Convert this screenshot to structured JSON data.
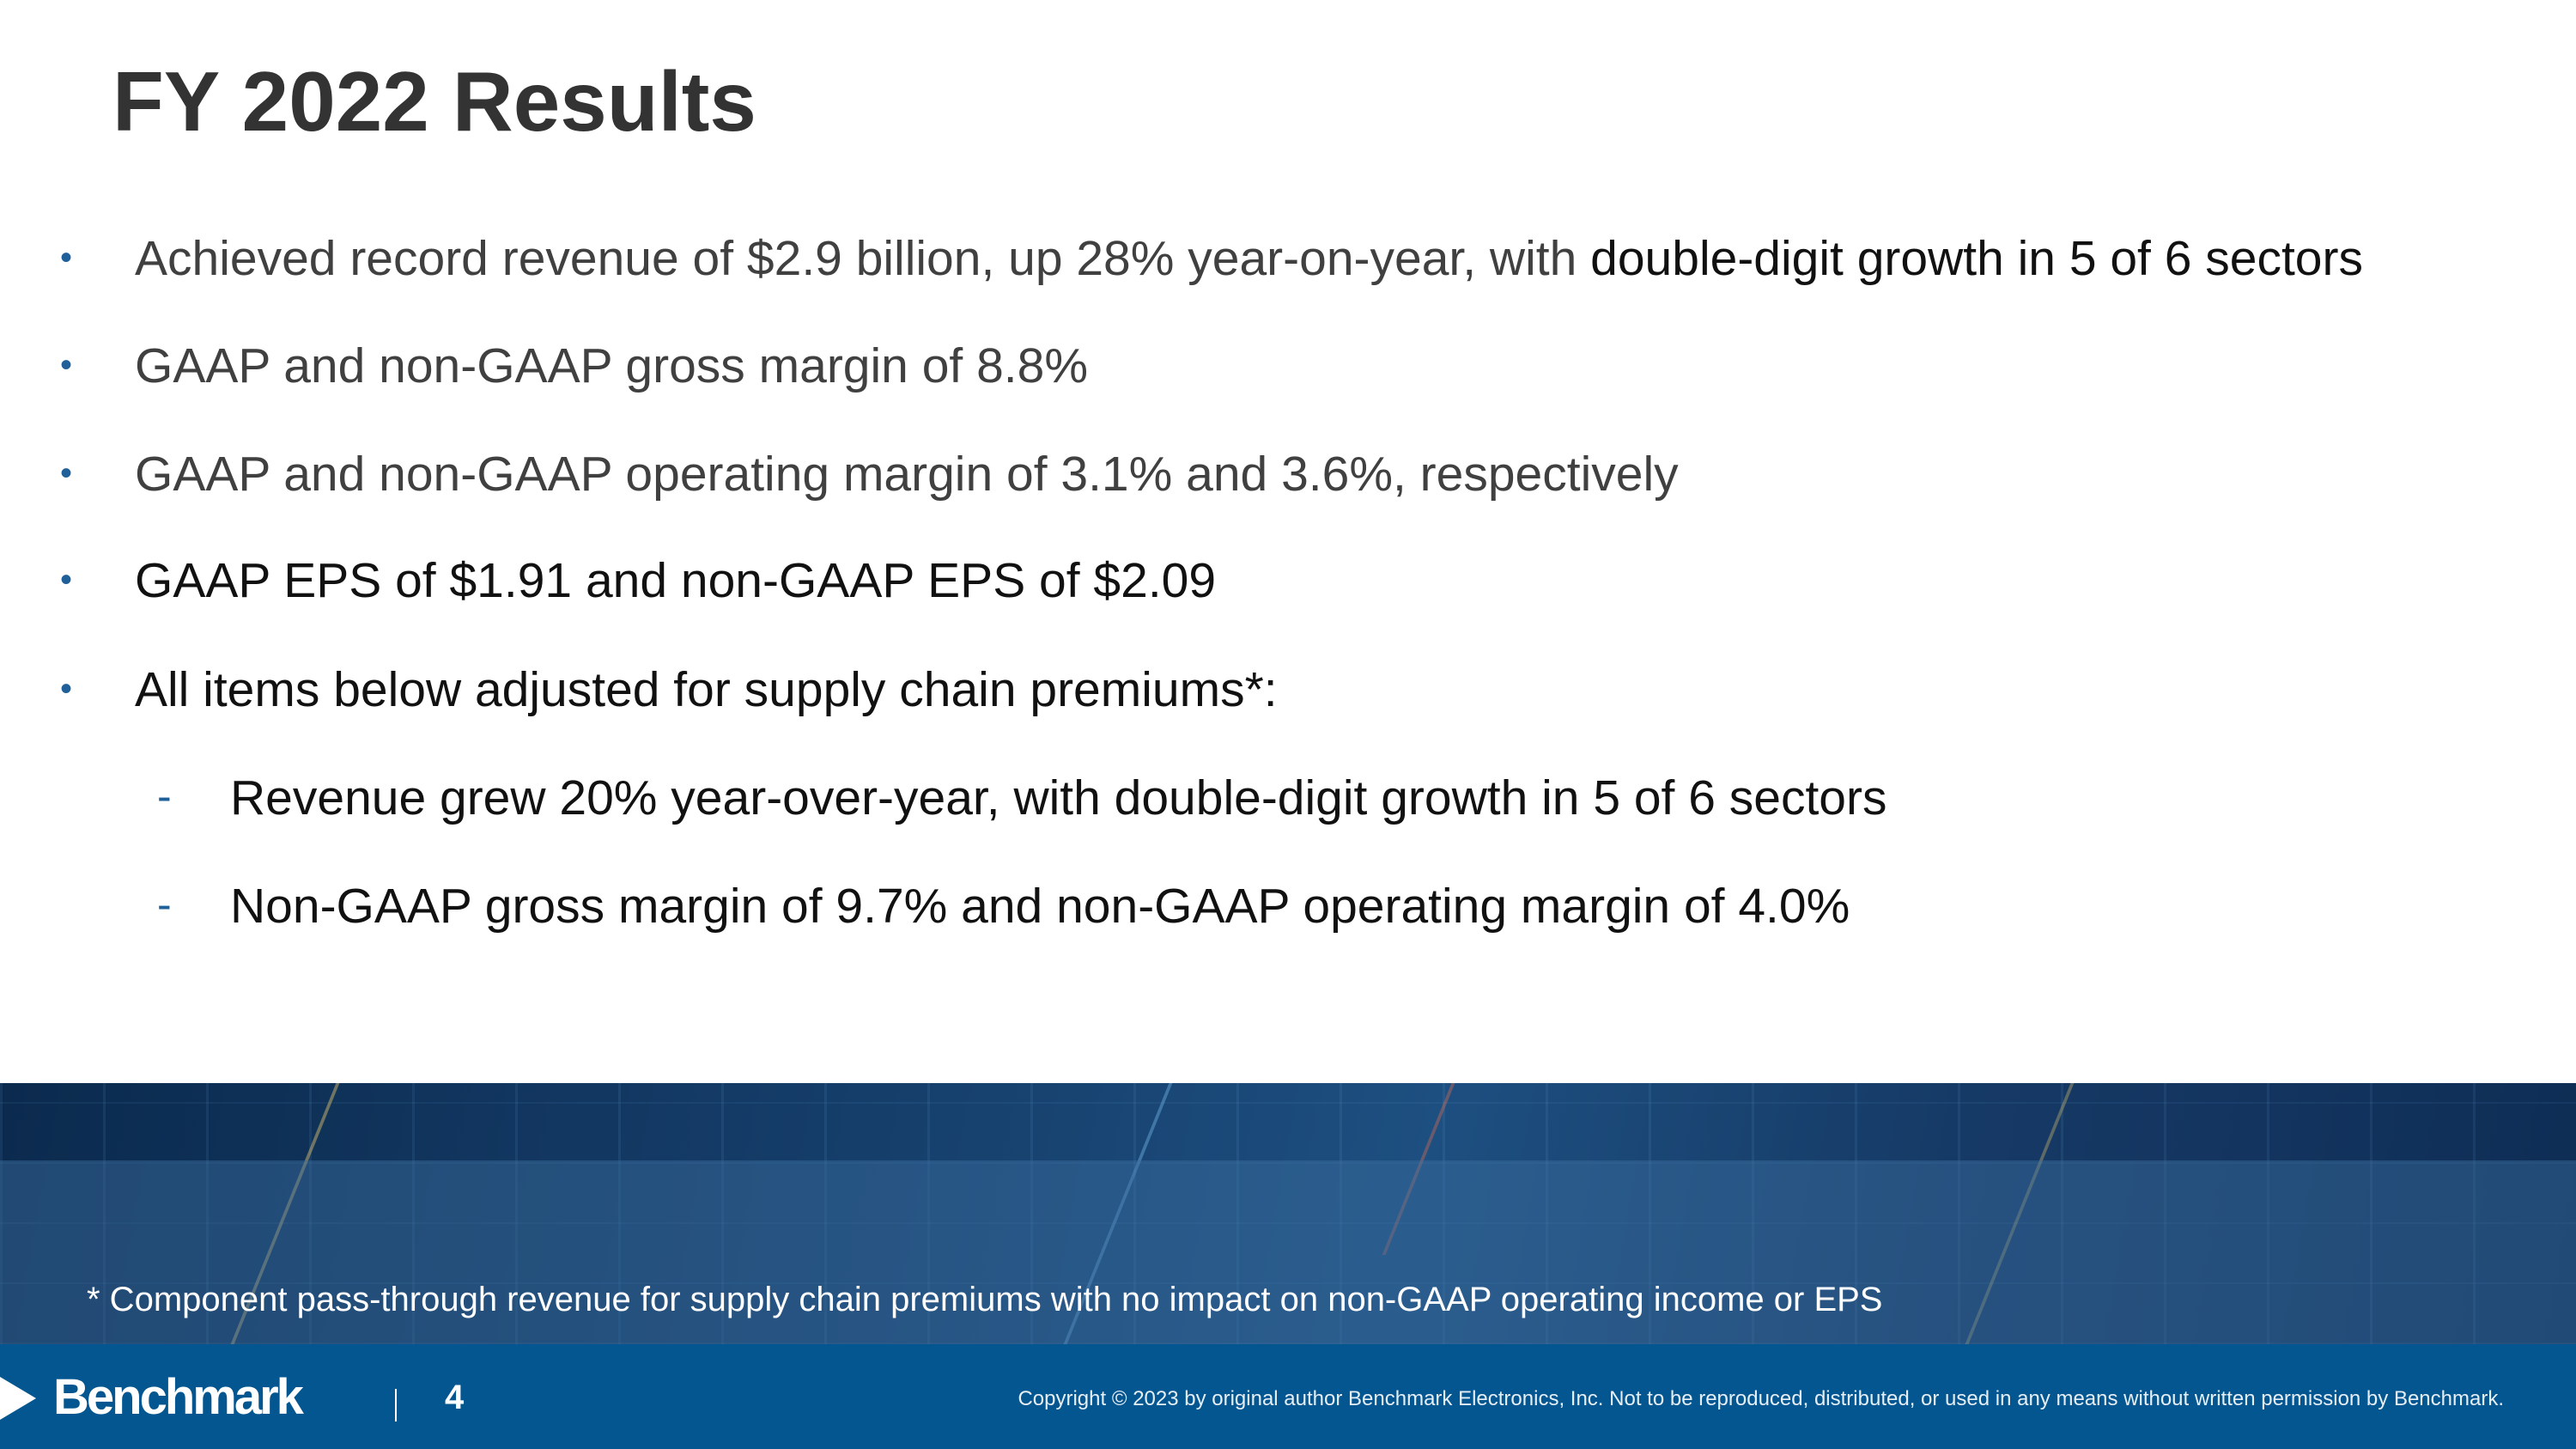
{
  "slide": {
    "title": "FY 2022 Results",
    "bullets": [
      {
        "marker": "•",
        "text": "Achieved record revenue of $2.9 billion, up 28% year-on-year, with",
        "text_b": " double-digit growth in 5 of 6 sectors"
      },
      {
        "marker": "•",
        "text": "GAAP and non-GAAP gross margin of 8.8%"
      },
      {
        "marker": "•",
        "text": "GAAP and non-GAAP operating margin of 3.1% and 3.6%, respectively"
      },
      {
        "marker": "•",
        "text": "GAAP EPS of $1.91 and non-GAAP EPS of $2.09"
      },
      {
        "marker": "•",
        "text": "All items below adjusted for supply chain premiums*:"
      }
    ],
    "sub_bullets": [
      {
        "marker": "-",
        "text": "Revenue grew 20% year-over-year, with double-digit growth in 5 of 6 sectors"
      },
      {
        "marker": "-",
        "text": "Non-GAAP gross margin of 9.7% and non-GAAP operating margin of 4.0%"
      }
    ],
    "footnote": "* Component pass-through revenue for supply chain premiums with no impact on non-GAAP operating income or EPS"
  },
  "footer": {
    "logo": "Benchmark",
    "page_number": "4",
    "copyright": "Copyright © 2023 by original author Benchmark Electronics, Inc. Not to be reproduced, distributed, or used in any means without written permission by Benchmark.",
    "color": "#03568f"
  }
}
